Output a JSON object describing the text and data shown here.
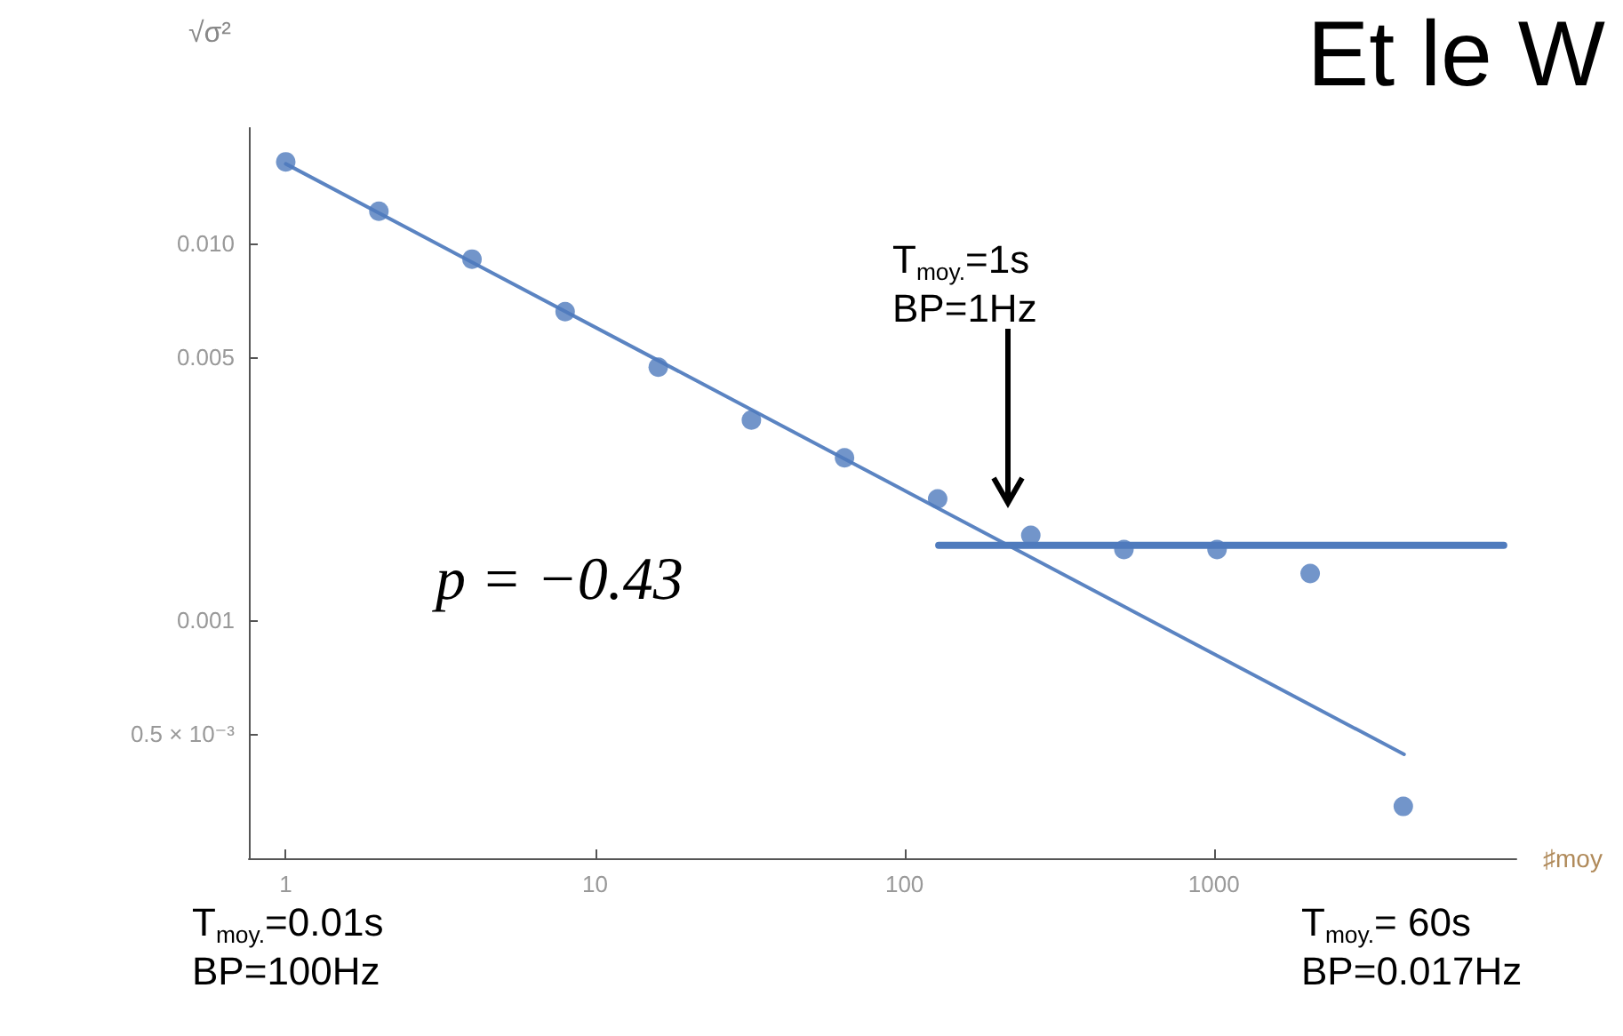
{
  "chart_data": {
    "type": "scatter",
    "title": "Et le W",
    "xlabel": "♯moy",
    "ylabel": "√σ²",
    "log": "xy",
    "xlim": [
      0.76,
      9500
    ],
    "ylim": [
      0.000233,
      0.0203
    ],
    "xticks": [
      1,
      10,
      100,
      1000
    ],
    "yticks": [
      {
        "value": 0.0005,
        "label": "0.5 × 10⁻³"
      },
      {
        "value": 0.001,
        "label": "0.001"
      },
      {
        "value": 0.005,
        "label": "0.005"
      },
      {
        "value": 0.01,
        "label": "0.010"
      }
    ],
    "series": [
      {
        "color": "#4f7bbd",
        "marker": "circle",
        "x": [
          1,
          2,
          4,
          8,
          16,
          32,
          64,
          128,
          256,
          512,
          1024,
          2048,
          4096
        ],
        "values": [
          0.0165,
          0.0122,
          0.0091,
          0.0066,
          0.0047,
          0.0034,
          0.0027,
          0.0021,
          0.00168,
          0.00154,
          0.00154,
          0.00133,
          0.00032
        ]
      },
      {
        "type": "line",
        "marker": "none",
        "color": "#5b84c2",
        "x": [
          1,
          4120
        ],
        "values": [
          0.0163,
          0.00044
        ]
      },
      {
        "type": "line",
        "marker": "none",
        "color": "#4f7bbd",
        "x": [
          129,
          8650
        ],
        "values": [
          0.00158,
          0.00158
        ]
      }
    ],
    "annotations": [
      "T$_{moy.}$=1s\nBP=1Hz",
      "p = −0.43",
      "T$_{moy.}$=0.01s\nBP=100Hz",
      "T$_{moy.}$= 60s\nBP=0.017Hz"
    ]
  }
}
